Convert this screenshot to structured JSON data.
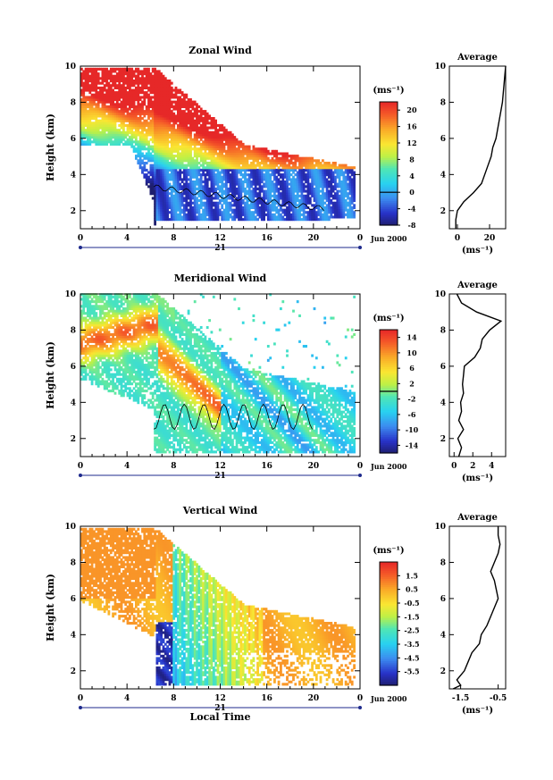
{
  "chart_data": [
    {
      "type": "heatmap",
      "title": "Zonal Wind",
      "xlabel": "",
      "ylabel": "Height (km)",
      "xlim": [
        0,
        24
      ],
      "ylim": [
        1,
        10
      ],
      "xticks": [
        "0",
        "4",
        "8",
        "12",
        "16",
        "20",
        "0"
      ],
      "yticks": [
        "2",
        "4",
        "6",
        "8",
        "10"
      ],
      "date_label": "21",
      "month_label": "Jun 2000",
      "colorbar": {
        "unit": "(ms⁻¹)",
        "min": -8,
        "max": 22,
        "ticks": [
          "-8",
          "-4",
          "0",
          "4",
          "8",
          "12",
          "16",
          "20"
        ],
        "contour_at": 0
      },
      "field_summary": {
        "upper_jet_max": 22,
        "lower_min": -8,
        "top_height_start": 9.8,
        "top_height_end": 4.4
      },
      "average_profile": {
        "title": "Average",
        "xlabel": "(ms⁻¹)",
        "xticks": [
          "0",
          "20"
        ],
        "xlim": [
          -5,
          30
        ],
        "height": [
          1.0,
          1.5,
          2.0,
          2.5,
          3.0,
          3.5,
          4.0,
          4.5,
          5.0,
          5.5,
          6.0,
          6.5,
          7.0,
          7.5,
          8.0,
          8.5,
          9.0,
          9.5,
          10.0
        ],
        "values": [
          -1,
          -1,
          0,
          4,
          10,
          15,
          17,
          19,
          21,
          22,
          24,
          25,
          26,
          27,
          28,
          28.5,
          29,
          29.5,
          30
        ]
      }
    },
    {
      "type": "heatmap",
      "title": "Meridional Wind",
      "xlabel": "",
      "ylabel": "Height (km)",
      "xlim": [
        0,
        24
      ],
      "ylim": [
        1,
        10
      ],
      "xticks": [
        "0",
        "4",
        "8",
        "12",
        "16",
        "20",
        "0"
      ],
      "yticks": [
        "2",
        "4",
        "6",
        "8",
        "10"
      ],
      "date_label": "21",
      "month_label": "Jun 2000",
      "colorbar": {
        "unit": "(ms⁻¹)",
        "min": -16,
        "max": 16,
        "ticks": [
          "-14",
          "-10",
          "-6",
          "-2",
          "2",
          "6",
          "10",
          "14"
        ],
        "contour_at": 0
      },
      "field_summary": {
        "ridge_max": 15,
        "east_min": -8
      },
      "average_profile": {
        "title": "Average",
        "xlabel": "(ms⁻¹)",
        "xticks": [
          "0",
          "2",
          "4"
        ],
        "xlim": [
          -0.5,
          5.5
        ],
        "height": [
          1.0,
          1.5,
          2.0,
          2.5,
          3.0,
          3.5,
          4.0,
          4.5,
          5.0,
          5.5,
          6.0,
          6.5,
          7.0,
          7.5,
          8.0,
          8.5,
          9.0,
          9.5,
          10.0
        ],
        "values": [
          0.5,
          0.8,
          0.4,
          1.0,
          0.5,
          0.8,
          0.7,
          1.0,
          0.9,
          1.0,
          1.1,
          2.2,
          2.8,
          3.0,
          3.8,
          5.0,
          2.4,
          0.8,
          0.3
        ]
      }
    },
    {
      "type": "heatmap",
      "title": "Vertical Wind",
      "xlabel": "Local Time",
      "ylabel": "Height (km)",
      "xlim": [
        0,
        24
      ],
      "ylim": [
        1,
        10
      ],
      "xticks": [
        "0",
        "4",
        "8",
        "12",
        "16",
        "20",
        "0"
      ],
      "yticks": [
        "2",
        "4",
        "6",
        "8",
        "10"
      ],
      "date_label": "21",
      "month_label": "Jun 2000",
      "colorbar": {
        "unit": "(ms⁻¹)",
        "min": -6.5,
        "max": 2.5,
        "ticks": [
          "-5.5",
          "-4.5",
          "-3.5",
          "-2.5",
          "-1.5",
          "-0.5",
          "0.5",
          "1.5"
        ]
      },
      "field_summary": {
        "background": 0.3,
        "convective_min": -6
      },
      "average_profile": {
        "title": "Average",
        "xlabel": "(ms⁻¹)",
        "xticks": [
          "-1.5",
          "-0.5"
        ],
        "xlim": [
          -1.8,
          -0.3
        ],
        "height": [
          1.0,
          1.2,
          1.5,
          2.0,
          2.5,
          3.0,
          3.5,
          4.0,
          4.5,
          5.0,
          5.5,
          6.0,
          6.5,
          7.0,
          7.5,
          8.0,
          8.5,
          9.0,
          9.5,
          10.0
        ],
        "values": [
          -1.7,
          -1.5,
          -1.6,
          -1.4,
          -1.3,
          -1.2,
          -1.0,
          -0.95,
          -0.8,
          -0.7,
          -0.6,
          -0.5,
          -0.55,
          -0.6,
          -0.7,
          -0.6,
          -0.5,
          -0.45,
          -0.5,
          -0.5
        ]
      }
    }
  ]
}
